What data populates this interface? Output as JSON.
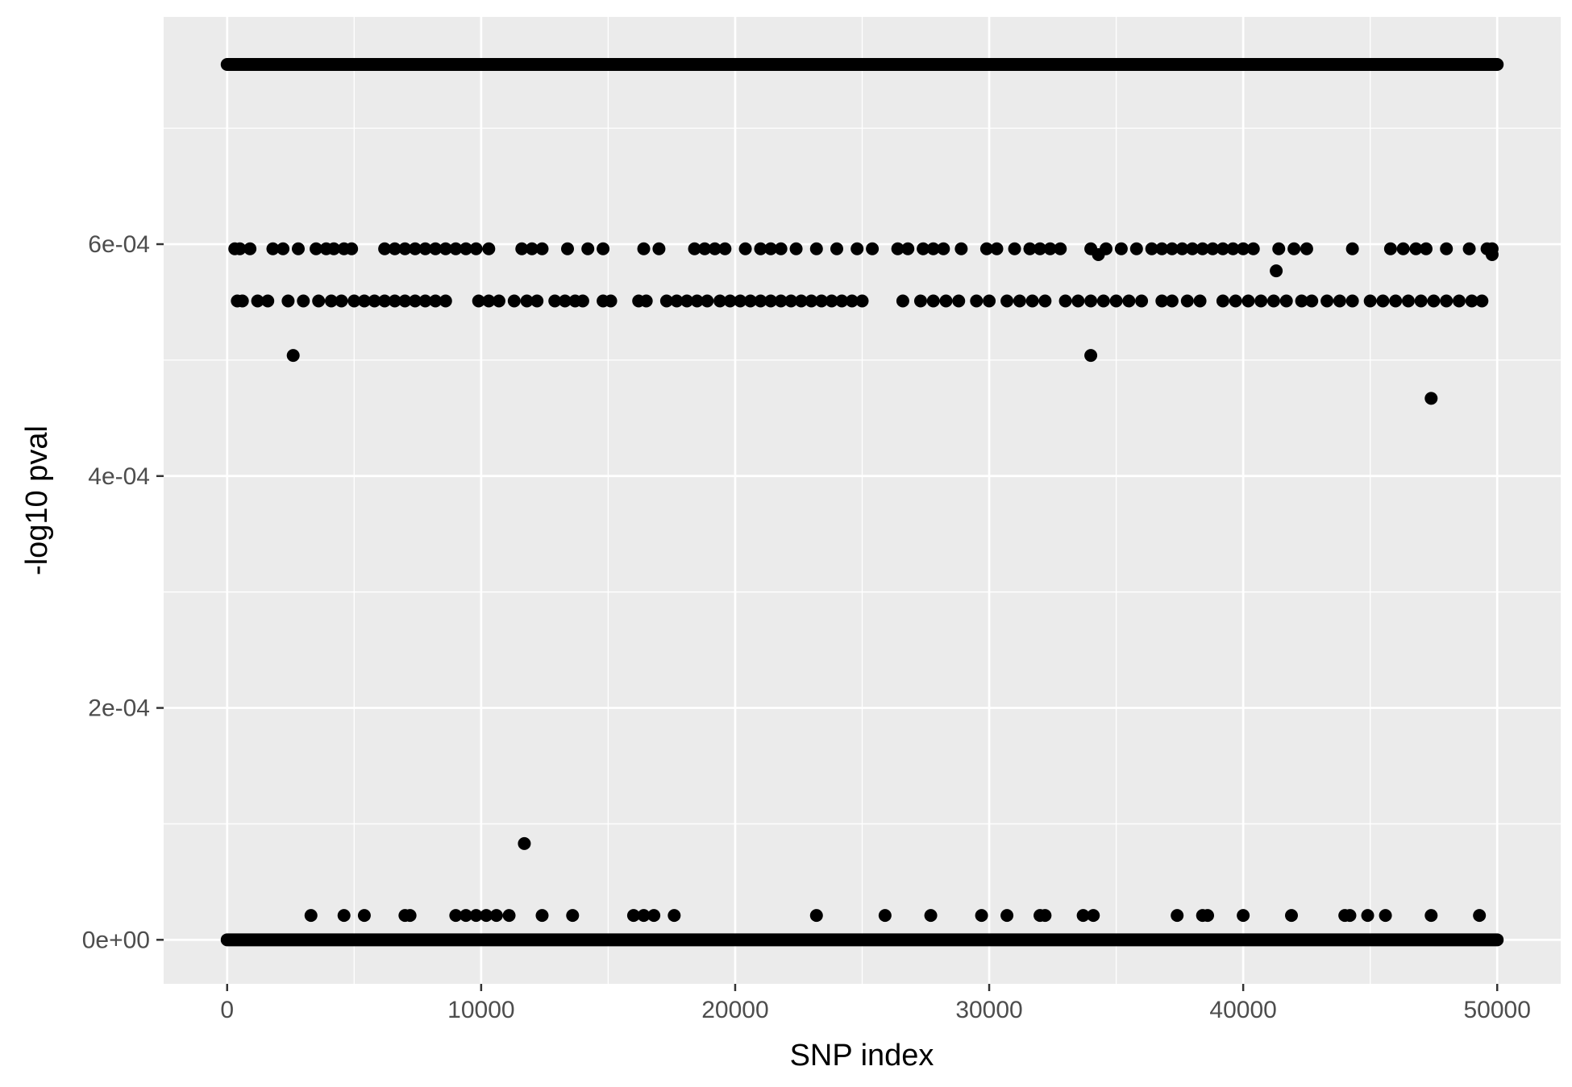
{
  "chart_data": {
    "type": "scatter",
    "title": "",
    "xlabel": "SNP index",
    "ylabel": "-log10 pval",
    "xlim": [
      -2500,
      52500
    ],
    "ylim": [
      -3.8e-05,
      0.000796
    ],
    "x_ticks": [
      0,
      10000,
      20000,
      30000,
      40000,
      50000
    ],
    "x_tick_labels": [
      "0",
      "10000",
      "20000",
      "30000",
      "40000",
      "50000"
    ],
    "y_ticks": [
      0,
      0.0002,
      0.0004,
      0.0006
    ],
    "y_tick_labels": [
      "0e+00",
      "2e-04",
      "4e-04",
      "6e-04"
    ],
    "grid": true,
    "background": "#ebebeb",
    "point_color": "#000000",
    "bands": [
      {
        "y": 0.000755,
        "x_from": 0,
        "x_to": 50000
      },
      {
        "y": 0.0,
        "x_from": 0,
        "x_to": 50000
      }
    ],
    "series": [
      {
        "values": [
          [
            300,
            0.000596
          ],
          [
            500,
            0.000596
          ],
          [
            900,
            0.000596
          ],
          [
            1800,
            0.000596
          ],
          [
            2200,
            0.000596
          ],
          [
            2800,
            0.000596
          ],
          [
            3500,
            0.000596
          ],
          [
            3900,
            0.000596
          ],
          [
            4200,
            0.000596
          ],
          [
            4600,
            0.000596
          ],
          [
            4900,
            0.000596
          ],
          [
            6200,
            0.000596
          ],
          [
            6600,
            0.000596
          ],
          [
            7000,
            0.000596
          ],
          [
            7400,
            0.000596
          ],
          [
            7800,
            0.000596
          ],
          [
            8200,
            0.000596
          ],
          [
            8600,
            0.000596
          ],
          [
            9000,
            0.000596
          ],
          [
            9400,
            0.000596
          ],
          [
            9800,
            0.000596
          ],
          [
            10300,
            0.000596
          ],
          [
            11600,
            0.000596
          ],
          [
            12000,
            0.000596
          ],
          [
            12400,
            0.000596
          ],
          [
            13400,
            0.000596
          ],
          [
            14200,
            0.000596
          ],
          [
            14800,
            0.000596
          ],
          [
            16400,
            0.000596
          ],
          [
            17000,
            0.000596
          ],
          [
            18400,
            0.000596
          ],
          [
            18800,
            0.000596
          ],
          [
            19200,
            0.000596
          ],
          [
            19600,
            0.000596
          ],
          [
            20400,
            0.000596
          ],
          [
            21000,
            0.000596
          ],
          [
            21400,
            0.000596
          ],
          [
            21800,
            0.000596
          ],
          [
            22400,
            0.000596
          ],
          [
            23200,
            0.000596
          ],
          [
            24000,
            0.000596
          ],
          [
            24800,
            0.000596
          ],
          [
            25400,
            0.000596
          ],
          [
            26400,
            0.000596
          ],
          [
            26800,
            0.000596
          ],
          [
            27400,
            0.000596
          ],
          [
            27800,
            0.000596
          ],
          [
            28200,
            0.000596
          ],
          [
            28900,
            0.000596
          ],
          [
            29900,
            0.000596
          ],
          [
            30300,
            0.000596
          ],
          [
            31000,
            0.000596
          ],
          [
            31600,
            0.000596
          ],
          [
            32000,
            0.000596
          ],
          [
            32400,
            0.000596
          ],
          [
            32800,
            0.000596
          ],
          [
            34000,
            0.000596
          ],
          [
            34600,
            0.000596
          ],
          [
            35200,
            0.000596
          ],
          [
            35800,
            0.000596
          ],
          [
            36400,
            0.000596
          ],
          [
            36800,
            0.000596
          ],
          [
            37200,
            0.000596
          ],
          [
            37600,
            0.000596
          ],
          [
            38000,
            0.000596
          ],
          [
            38400,
            0.000596
          ],
          [
            38800,
            0.000596
          ],
          [
            39200,
            0.000596
          ],
          [
            39600,
            0.000596
          ],
          [
            40000,
            0.000596
          ],
          [
            40400,
            0.000596
          ],
          [
            41400,
            0.000596
          ],
          [
            42000,
            0.000596
          ],
          [
            42500,
            0.000596
          ],
          [
            44300,
            0.000596
          ],
          [
            45800,
            0.000596
          ],
          [
            46300,
            0.000596
          ],
          [
            46800,
            0.000596
          ],
          [
            47200,
            0.000596
          ],
          [
            48000,
            0.000596
          ],
          [
            48900,
            0.000596
          ],
          [
            49600,
            0.000596
          ],
          [
            49800,
            0.000596
          ],
          [
            400,
            0.000551
          ],
          [
            600,
            0.000551
          ],
          [
            1200,
            0.000551
          ],
          [
            1600,
            0.000551
          ],
          [
            2400,
            0.000551
          ],
          [
            3000,
            0.000551
          ],
          [
            3600,
            0.000551
          ],
          [
            4100,
            0.000551
          ],
          [
            4500,
            0.000551
          ],
          [
            5000,
            0.000551
          ],
          [
            5400,
            0.000551
          ],
          [
            5800,
            0.000551
          ],
          [
            6200,
            0.000551
          ],
          [
            6600,
            0.000551
          ],
          [
            7000,
            0.000551
          ],
          [
            7400,
            0.000551
          ],
          [
            7800,
            0.000551
          ],
          [
            8200,
            0.000551
          ],
          [
            8600,
            0.000551
          ],
          [
            9900,
            0.000551
          ],
          [
            10300,
            0.000551
          ],
          [
            10700,
            0.000551
          ],
          [
            11300,
            0.000551
          ],
          [
            11800,
            0.000551
          ],
          [
            12200,
            0.000551
          ],
          [
            12900,
            0.000551
          ],
          [
            13300,
            0.000551
          ],
          [
            13700,
            0.000551
          ],
          [
            14000,
            0.000551
          ],
          [
            14800,
            0.000551
          ],
          [
            15100,
            0.000551
          ],
          [
            16200,
            0.000551
          ],
          [
            16500,
            0.000551
          ],
          [
            17300,
            0.000551
          ],
          [
            17700,
            0.000551
          ],
          [
            18100,
            0.000551
          ],
          [
            18500,
            0.000551
          ],
          [
            18900,
            0.000551
          ],
          [
            19400,
            0.000551
          ],
          [
            19800,
            0.000551
          ],
          [
            20200,
            0.000551
          ],
          [
            20600,
            0.000551
          ],
          [
            21000,
            0.000551
          ],
          [
            21400,
            0.000551
          ],
          [
            21800,
            0.000551
          ],
          [
            22200,
            0.000551
          ],
          [
            22600,
            0.000551
          ],
          [
            23000,
            0.000551
          ],
          [
            23400,
            0.000551
          ],
          [
            23800,
            0.000551
          ],
          [
            24200,
            0.000551
          ],
          [
            24600,
            0.000551
          ],
          [
            25000,
            0.000551
          ],
          [
            26600,
            0.000551
          ],
          [
            27300,
            0.000551
          ],
          [
            27800,
            0.000551
          ],
          [
            28300,
            0.000551
          ],
          [
            28800,
            0.000551
          ],
          [
            29500,
            0.000551
          ],
          [
            30000,
            0.000551
          ],
          [
            30700,
            0.000551
          ],
          [
            31200,
            0.000551
          ],
          [
            31700,
            0.000551
          ],
          [
            32200,
            0.000551
          ],
          [
            33000,
            0.000551
          ],
          [
            33500,
            0.000551
          ],
          [
            34000,
            0.000551
          ],
          [
            34500,
            0.000551
          ],
          [
            35000,
            0.000551
          ],
          [
            35500,
            0.000551
          ],
          [
            36000,
            0.000551
          ],
          [
            36800,
            0.000551
          ],
          [
            37200,
            0.000551
          ],
          [
            37800,
            0.000551
          ],
          [
            38300,
            0.000551
          ],
          [
            39200,
            0.000551
          ],
          [
            39700,
            0.000551
          ],
          [
            40200,
            0.000551
          ],
          [
            40700,
            0.000551
          ],
          [
            41200,
            0.000551
          ],
          [
            41700,
            0.000551
          ],
          [
            42300,
            0.000551
          ],
          [
            42700,
            0.000551
          ],
          [
            43300,
            0.000551
          ],
          [
            43800,
            0.000551
          ],
          [
            44300,
            0.000551
          ],
          [
            45000,
            0.000551
          ],
          [
            45500,
            0.000551
          ],
          [
            46000,
            0.000551
          ],
          [
            46500,
            0.000551
          ],
          [
            47000,
            0.000551
          ],
          [
            47500,
            0.000551
          ],
          [
            48000,
            0.000551
          ],
          [
            48500,
            0.000551
          ],
          [
            49000,
            0.000551
          ],
          [
            49400,
            0.000551
          ],
          [
            2600,
            0.000504
          ],
          [
            34000,
            0.000504
          ],
          [
            47400,
            0.000467
          ],
          [
            41300,
            0.000577
          ],
          [
            34300,
            0.000591
          ],
          [
            49800,
            0.000591
          ],
          [
            11700,
            8.3e-05
          ],
          [
            3300,
            2.1e-05
          ],
          [
            4600,
            2.1e-05
          ],
          [
            5400,
            2.1e-05
          ],
          [
            7000,
            2.1e-05
          ],
          [
            7200,
            2.1e-05
          ],
          [
            9000,
            2.1e-05
          ],
          [
            9400,
            2.1e-05
          ],
          [
            9800,
            2.1e-05
          ],
          [
            10200,
            2.1e-05
          ],
          [
            10600,
            2.1e-05
          ],
          [
            11100,
            2.1e-05
          ],
          [
            12400,
            2.1e-05
          ],
          [
            13600,
            2.1e-05
          ],
          [
            16000,
            2.1e-05
          ],
          [
            16400,
            2.1e-05
          ],
          [
            16800,
            2.1e-05
          ],
          [
            17600,
            2.1e-05
          ],
          [
            23200,
            2.1e-05
          ],
          [
            25900,
            2.1e-05
          ],
          [
            27700,
            2.1e-05
          ],
          [
            29700,
            2.1e-05
          ],
          [
            30700,
            2.1e-05
          ],
          [
            32000,
            2.1e-05
          ],
          [
            32200,
            2.1e-05
          ],
          [
            33700,
            2.1e-05
          ],
          [
            34100,
            2.1e-05
          ],
          [
            37400,
            2.1e-05
          ],
          [
            38400,
            2.1e-05
          ],
          [
            38600,
            2.1e-05
          ],
          [
            40000,
            2.1e-05
          ],
          [
            41900,
            2.1e-05
          ],
          [
            44000,
            2.1e-05
          ],
          [
            44200,
            2.1e-05
          ],
          [
            44900,
            2.1e-05
          ],
          [
            45600,
            2.1e-05
          ],
          [
            47400,
            2.1e-05
          ],
          [
            49300,
            2.1e-05
          ]
        ]
      }
    ]
  }
}
